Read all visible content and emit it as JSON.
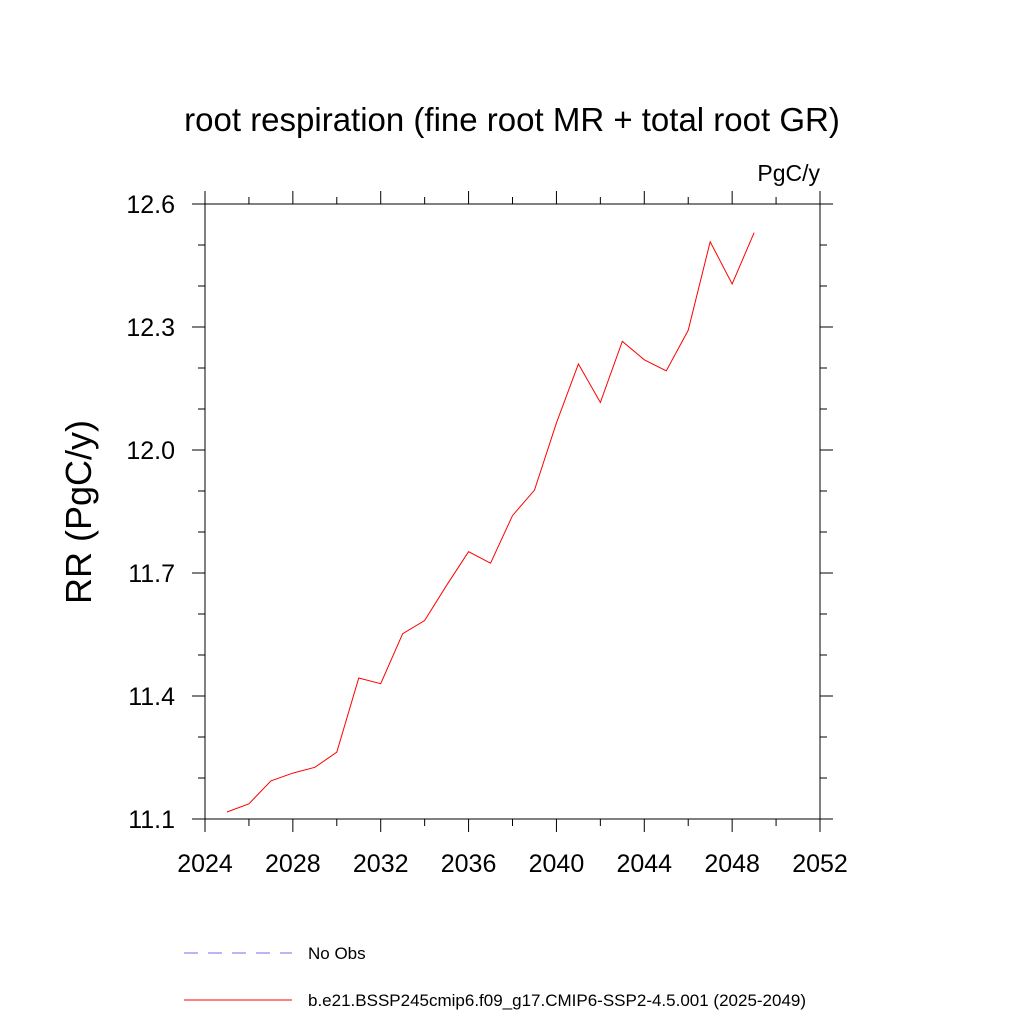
{
  "chart_data": {
    "type": "line",
    "title": "root respiration (fine root MR + total root GR)",
    "units_label": "PgC/y",
    "ylabel": "RR  (PgC/y)",
    "xlabel": "",
    "xlim": [
      2024,
      2052
    ],
    "ylim": [
      11.1,
      12.6
    ],
    "xticks": [
      2024,
      2028,
      2032,
      2036,
      2040,
      2044,
      2048,
      2052
    ],
    "xtick_labels": [
      "2024",
      "2028",
      "2032",
      "2036",
      "2040",
      "2044",
      "2048",
      "2052"
    ],
    "xminor_step": 2,
    "yticks": [
      11.1,
      11.4,
      11.7,
      12.0,
      12.3,
      12.6
    ],
    "ytick_labels": [
      "11.1",
      "11.4",
      "11.7",
      "12.0",
      "12.3",
      "12.6"
    ],
    "yminor_step": 0.1,
    "grid": false,
    "legend_position": "bottom",
    "series": [
      {
        "name": "No Obs",
        "color": "#7b68ee",
        "dashed": true,
        "x": [],
        "y": []
      },
      {
        "name": "b.e21.BSSP245cmip6.f09_g17.CMIP6-SSP2-4.5.001 (2025-2049)",
        "color": "#ff0000",
        "dashed": false,
        "x": [
          2025,
          2026,
          2027,
          2028,
          2029,
          2030,
          2031,
          2032,
          2033,
          2034,
          2035,
          2036,
          2037,
          2038,
          2039,
          2040,
          2041,
          2042,
          2043,
          2044,
          2045,
          2046,
          2047,
          2048,
          2049
        ],
        "y": [
          11.117,
          11.137,
          11.193,
          11.212,
          11.226,
          11.263,
          11.444,
          11.43,
          11.552,
          11.584,
          11.67,
          11.752,
          11.724,
          11.84,
          11.902,
          12.066,
          12.21,
          12.116,
          12.265,
          12.22,
          12.193,
          12.292,
          12.508,
          12.405,
          12.53
        ]
      }
    ]
  }
}
